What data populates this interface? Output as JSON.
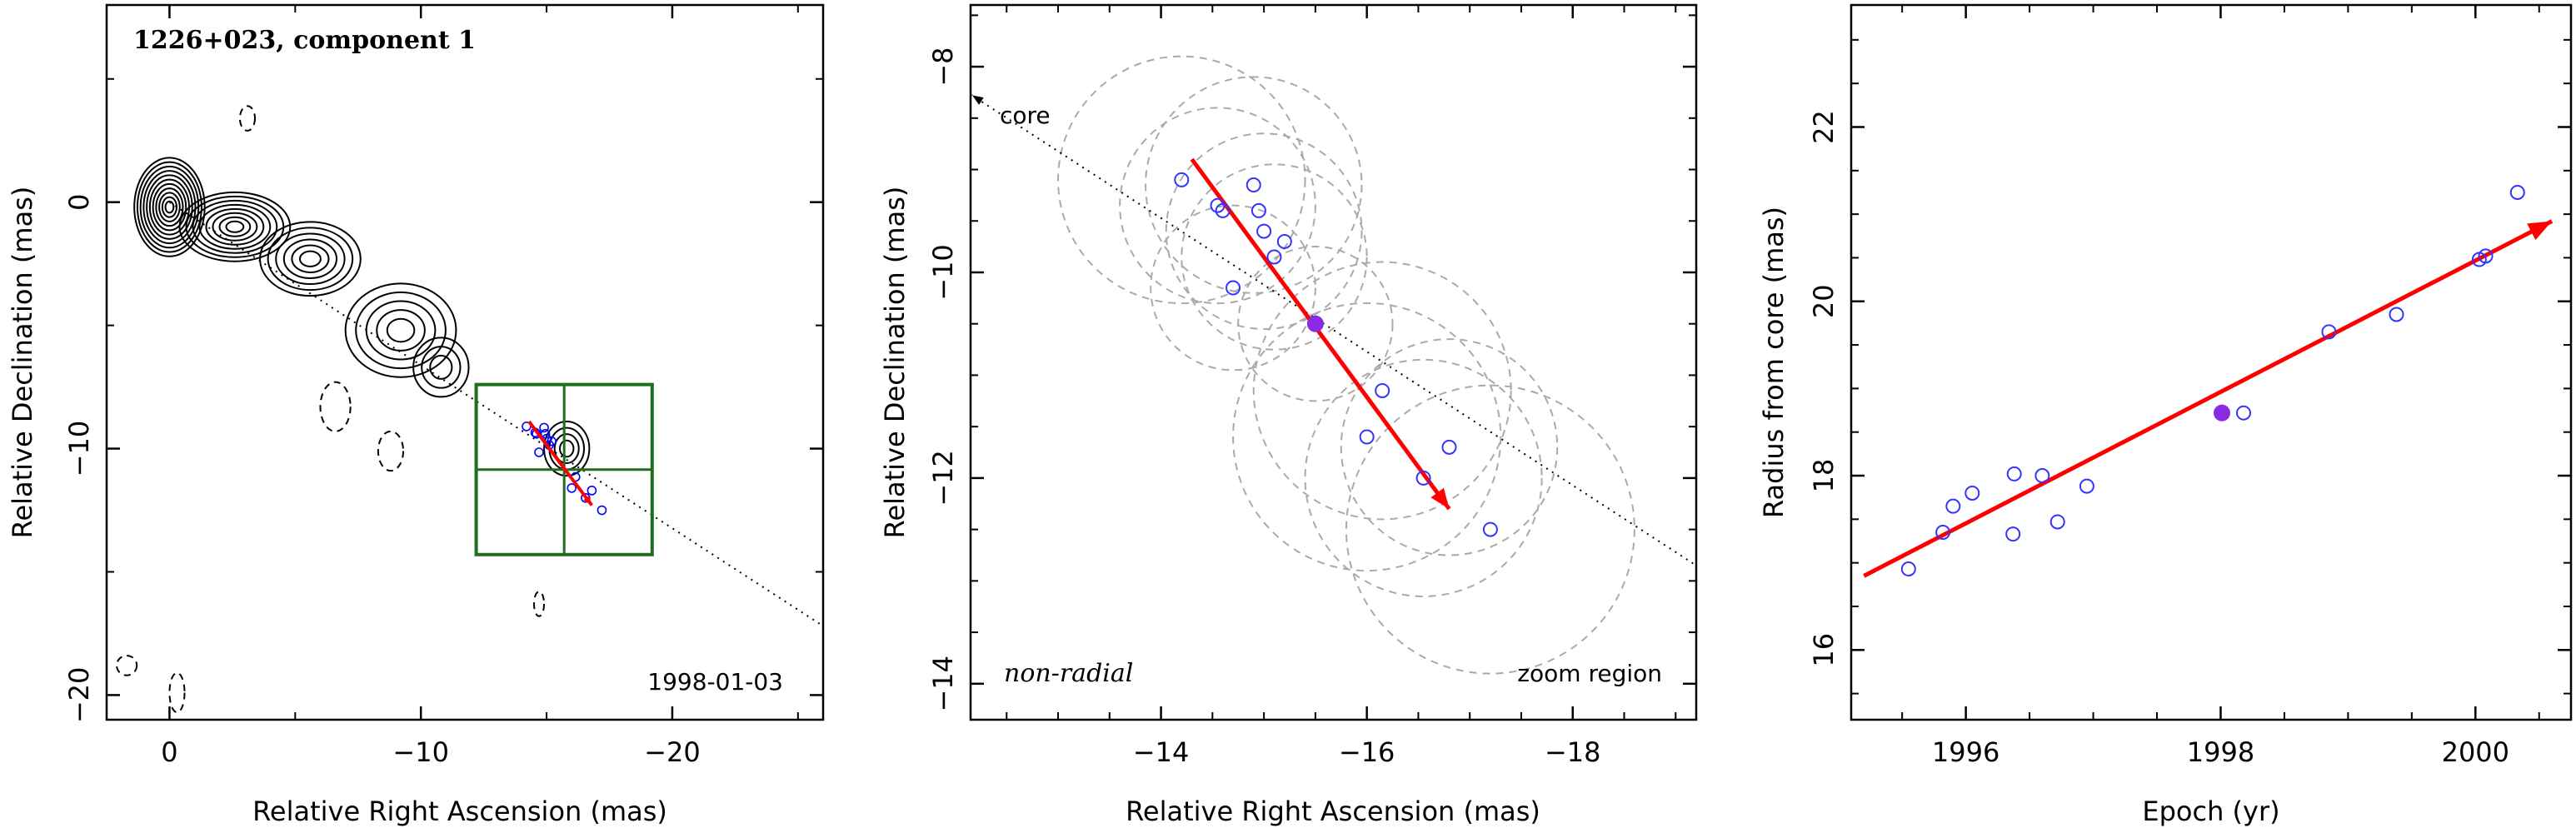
{
  "chart_data": [
    {
      "type": "contour",
      "title": "1226+023, component 1",
      "epoch_label": "1998-01-03",
      "xlabel": "Relative Right Ascension (mas)",
      "ylabel": "Relative Declination (mas)",
      "xlim": [
        2.5,
        -26
      ],
      "ylim": [
        -21,
        8
      ],
      "xticks": [
        0,
        -10,
        -20
      ],
      "yticks": [
        0,
        -10,
        -20
      ],
      "jet_knots": [
        {
          "x": 0.0,
          "y": -0.2,
          "rx": 1.4,
          "ry": 2.0,
          "n": 11
        },
        {
          "x": -2.6,
          "y": -1.0,
          "rx": 2.2,
          "ry": 1.4,
          "n": 8
        },
        {
          "x": -5.6,
          "y": -2.3,
          "rx": 2.0,
          "ry": 1.5,
          "n": 6
        },
        {
          "x": -9.2,
          "y": -5.2,
          "rx": 2.2,
          "ry": 1.9,
          "n": 5
        },
        {
          "x": -10.8,
          "y": -6.7,
          "rx": 1.1,
          "ry": 1.2,
          "n": 3
        },
        {
          "x": -15.8,
          "y": -10.0,
          "rx": 0.9,
          "ry": 1.1,
          "n": 4
        }
      ],
      "negative_contours": [
        {
          "x": -6.6,
          "y": -8.3,
          "rx": 0.6,
          "ry": 1.0
        },
        {
          "x": -8.8,
          "y": -10.1,
          "rx": 0.5,
          "ry": 0.8
        },
        {
          "x": 1.7,
          "y": -18.8,
          "rx": 0.4,
          "ry": 0.4
        },
        {
          "x": -0.3,
          "y": -19.9,
          "rx": 0.3,
          "ry": 0.8
        },
        {
          "x": -14.7,
          "y": -16.3,
          "rx": 0.2,
          "ry": 0.5
        },
        {
          "x": -3.1,
          "y": 3.4,
          "rx": 0.3,
          "ry": 0.5
        }
      ],
      "box_x": [
        -12.2,
        -19.2
      ],
      "box_y": [
        -7.4,
        -14.3
      ],
      "box_color": "#1f6e1f",
      "radial_line_color": "#000000",
      "arrow_color": "#ff0000",
      "point_color": "#0000ff"
    },
    {
      "type": "scatter",
      "xlabel": "Relative Right Ascension (mas)",
      "ylabel": "Relative Declination (mas)",
      "xlim": [
        -12.15,
        -19.2
      ],
      "ylim": [
        -14.35,
        -7.4
      ],
      "xticks": [
        -14,
        -16,
        -18
      ],
      "yticks": [
        -8,
        -10,
        -12,
        -14
      ],
      "annotation_core": "core",
      "annotation_motion": "non-radial",
      "annotation_zoom": "zoom region",
      "points": [
        {
          "x": -14.2,
          "y": -9.1
        },
        {
          "x": -14.55,
          "y": -9.35
        },
        {
          "x": -14.6,
          "y": -9.4
        },
        {
          "x": -14.9,
          "y": -9.15
        },
        {
          "x": -14.95,
          "y": -9.4
        },
        {
          "x": -15.0,
          "y": -9.6
        },
        {
          "x": -15.1,
          "y": -9.85
        },
        {
          "x": -15.2,
          "y": -9.7
        },
        {
          "x": -14.7,
          "y": -10.15
        },
        {
          "x": -16.15,
          "y": -11.15
        },
        {
          "x": -16.0,
          "y": -11.6
        },
        {
          "x": -16.55,
          "y": -12.0
        },
        {
          "x": -16.8,
          "y": -11.7
        },
        {
          "x": -17.2,
          "y": -12.5
        }
      ],
      "filled_point": {
        "x": -15.5,
        "y": -10.5
      },
      "beam_circles": [
        {
          "x": -14.2,
          "y": -9.1,
          "r": 1.2
        },
        {
          "x": -14.55,
          "y": -9.35,
          "r": 0.95
        },
        {
          "x": -14.9,
          "y": -9.15,
          "r": 1.05
        },
        {
          "x": -15.0,
          "y": -9.6,
          "r": 0.95
        },
        {
          "x": -15.1,
          "y": -9.85,
          "r": 0.9
        },
        {
          "x": -14.7,
          "y": -10.15,
          "r": 0.8
        },
        {
          "x": -15.5,
          "y": -10.5,
          "r": 0.75
        },
        {
          "x": -16.15,
          "y": -11.15,
          "r": 1.25
        },
        {
          "x": -16.0,
          "y": -11.6,
          "r": 1.3
        },
        {
          "x": -16.55,
          "y": -12.0,
          "r": 1.15
        },
        {
          "x": -16.8,
          "y": -11.7,
          "r": 1.05
        },
        {
          "x": -17.2,
          "y": -12.5,
          "r": 1.4
        }
      ],
      "arrow": {
        "x0": -14.3,
        "y0": -8.9,
        "x1": -16.8,
        "y1": -12.3
      },
      "radial_line": {
        "x0": -12.15,
        "y0": -8.27,
        "x1": -19.2,
        "y1": -12.85
      },
      "arrow_color": "#ff0000",
      "point_color": "#3333ff",
      "filled_color": "#8a2be2",
      "circle_color": "#aaaaaa"
    },
    {
      "type": "scatter",
      "xlabel": "Epoch (yr)",
      "ylabel": "Radius from core (mas)",
      "xlim": [
        1995.1,
        2000.75
      ],
      "ylim": [
        15.2,
        23.4
      ],
      "xticks": [
        1996,
        1998,
        2000
      ],
      "yticks": [
        16,
        18,
        20,
        22
      ],
      "points": [
        {
          "x": 1995.55,
          "y": 16.93
        },
        {
          "x": 1995.82,
          "y": 17.35
        },
        {
          "x": 1995.9,
          "y": 17.65
        },
        {
          "x": 1996.05,
          "y": 17.8
        },
        {
          "x": 1996.37,
          "y": 17.33
        },
        {
          "x": 1996.38,
          "y": 18.02
        },
        {
          "x": 1996.6,
          "y": 18.0
        },
        {
          "x": 1996.72,
          "y": 17.47
        },
        {
          "x": 1996.95,
          "y": 17.88
        },
        {
          "x": 1998.18,
          "y": 18.72
        },
        {
          "x": 1998.85,
          "y": 19.65
        },
        {
          "x": 1999.38,
          "y": 19.85
        },
        {
          "x": 2000.03,
          "y": 20.48
        },
        {
          "x": 2000.08,
          "y": 20.52
        },
        {
          "x": 2000.33,
          "y": 21.25
        }
      ],
      "filled_point": {
        "x": 1998.01,
        "y": 18.72
      },
      "fit_line": {
        "x0": 1995.2,
        "y0": 16.85,
        "x1": 2000.6,
        "y1": 20.92
      },
      "arrow_color": "#ff0000",
      "point_color": "#3333ff",
      "filled_color": "#8a2be2"
    }
  ]
}
